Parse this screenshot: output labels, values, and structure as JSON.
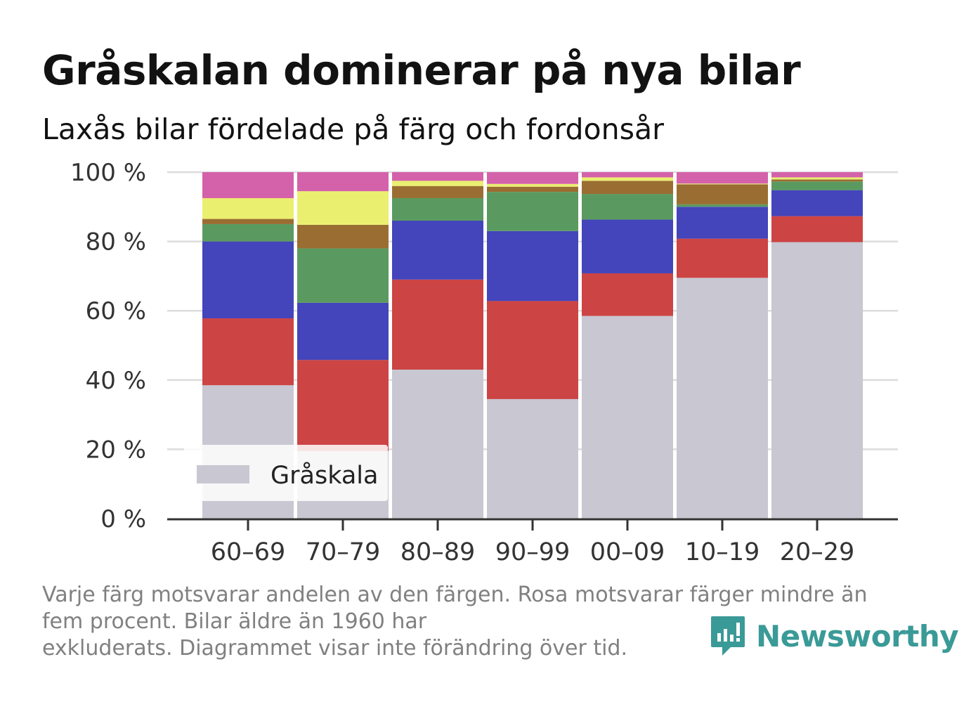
{
  "title": "Gråskalan dominerar på nya bilar",
  "subtitle": "Laxås bilar fördelade på färg och fordonsår",
  "footnote": {
    "line1": "Varje färg motsvarar andelen av den färgen. Rosa motsvarar färger mindre än",
    "line2": "fem procent. Bilar äldre än 1960 har",
    "line3": "exkluderats. Diagrammet visar inte förändring över tid."
  },
  "brand": {
    "name": "Newsworthy",
    "color": "#3a9a97"
  },
  "chart_data": {
    "type": "bar",
    "stacked": true,
    "categories": [
      "60–69",
      "70–79",
      "80–89",
      "90–99",
      "00–09",
      "10–19",
      "20–29"
    ],
    "ylim": [
      0,
      100
    ],
    "yticks": [
      0,
      20,
      40,
      60,
      80,
      100
    ],
    "ytick_labels": [
      "0 %",
      "20 %",
      "40 %",
      "60 %",
      "80 %",
      "100 %"
    ],
    "legend": {
      "position": "bottom-left",
      "entries": [
        "Gråskala"
      ]
    },
    "grid": true,
    "series": [
      {
        "name": "Gråskala",
        "color": "#c8c7d2",
        "values": [
          38.5,
          19.5,
          43,
          34.5,
          58.5,
          69.5,
          79.8
        ]
      },
      {
        "color": "#cc4444",
        "values": [
          19.3,
          26.3,
          26,
          28.3,
          12.3,
          11.3,
          7.5
        ]
      },
      {
        "color": "#4444bb",
        "values": [
          22.2,
          16.5,
          17,
          20.2,
          15.5,
          9.2,
          7.5
        ]
      },
      {
        "color": "#5a9a60",
        "values": [
          5,
          15.7,
          6.5,
          11.3,
          7.4,
          0.7,
          2.5
        ]
      },
      {
        "color": "#9a6e32",
        "values": [
          1.5,
          6.8,
          3.5,
          1.5,
          3.8,
          5.8,
          0.6
        ]
      },
      {
        "color": "#eaef70",
        "values": [
          6,
          9.7,
          1.5,
          0.8,
          1,
          0.2,
          0.6
        ]
      },
      {
        "color": "#d462aa",
        "values": [
          7.5,
          5.5,
          2.5,
          3.4,
          1.5,
          3.3,
          1.5
        ]
      }
    ]
  }
}
